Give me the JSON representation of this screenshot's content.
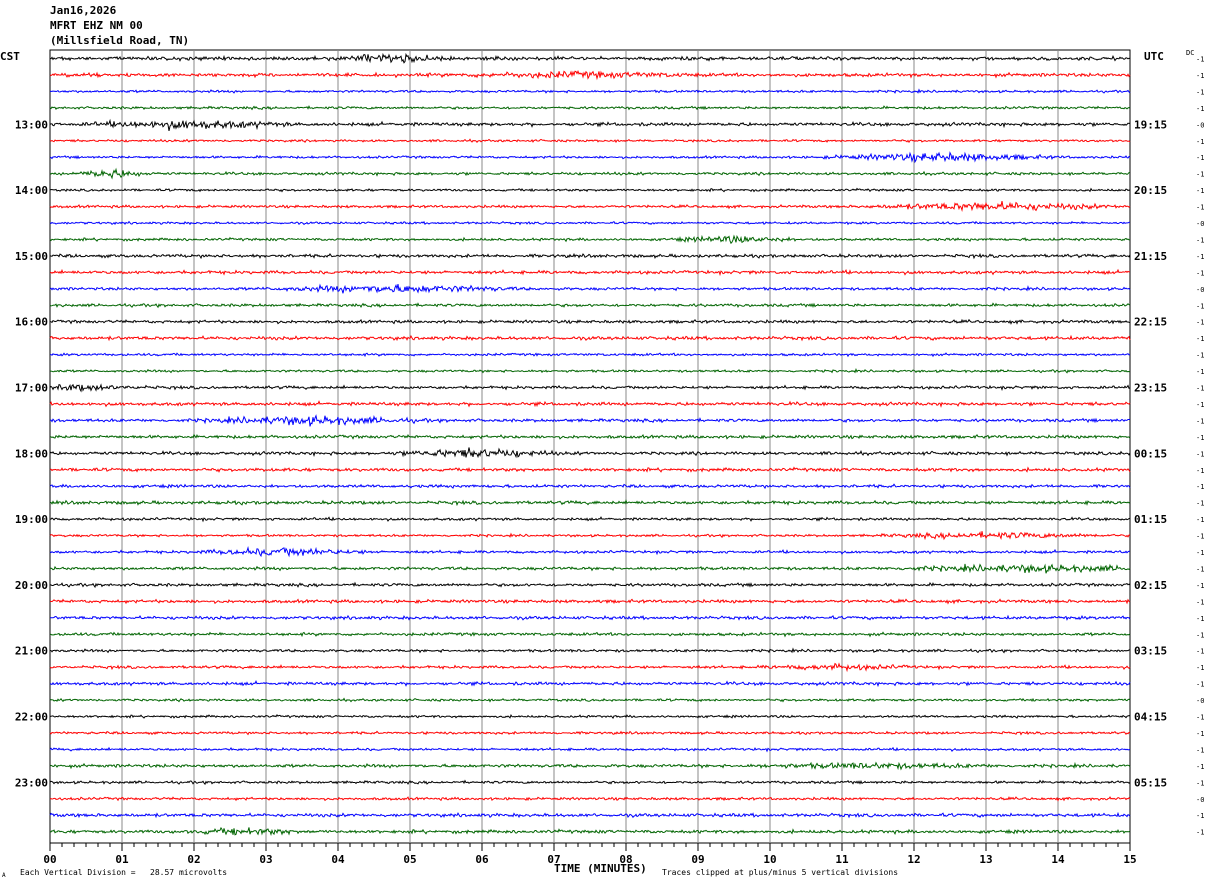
{
  "header": {
    "date": "Jan16,2026",
    "station": "MFRT EHZ NM 00",
    "location": "(Millsfield Road, TN)"
  },
  "left_tz": "CST",
  "right_tz": "UTC",
  "dc_label": "DC",
  "footer": {
    "scale": "Each Vertical Division =   28.57 microvolts",
    "clip_note": "Traces clipped at plus/minus 5 vertical divisions",
    "corner_mark": "A"
  },
  "chart_data": {
    "type": "line",
    "title": "",
    "xlabel": "TIME (MINUTES)",
    "xlim": [
      0,
      15
    ],
    "x_ticks": [
      "00",
      "01",
      "02",
      "03",
      "04",
      "05",
      "06",
      "07",
      "08",
      "09",
      "10",
      "11",
      "12",
      "13",
      "14",
      "15"
    ],
    "left_hour_labels": [
      "13:00",
      "14:00",
      "15:00",
      "16:00",
      "17:00",
      "18:00",
      "19:00",
      "20:00",
      "21:00",
      "22:00",
      "23:00"
    ],
    "right_hour_labels": [
      "19:15",
      "20:15",
      "21:15",
      "22:15",
      "23:15",
      "00:15",
      "01:15",
      "02:15",
      "03:15",
      "04:15",
      "05:15"
    ],
    "first_labeled_row": 4,
    "rows_per_hour": 4,
    "trace_count": 48,
    "trace_colors": [
      "#000000",
      "#ff0000",
      "#0000ff",
      "#006400"
    ],
    "dc_offsets": [
      "-1",
      "-1",
      "-1",
      "-1",
      "-0",
      "-1",
      "-1",
      "-1",
      "-1",
      "-1",
      "-0",
      "-1",
      "-1",
      "-1",
      "-0",
      "-1",
      "-1",
      "-1",
      "-1",
      "-1",
      "-1",
      "-1",
      "-1",
      "-1",
      "-1",
      "-1",
      "-1",
      "-1",
      "-1",
      "-1",
      "-1",
      "-1",
      "-1",
      "-1",
      "-1",
      "-1",
      "-1",
      "-1",
      "-1",
      "-0",
      "-1",
      "-1",
      "-1",
      "-1",
      "-1",
      "-0",
      "-1",
      "-1"
    ],
    "grid": true,
    "clip_divisions": 5
  }
}
